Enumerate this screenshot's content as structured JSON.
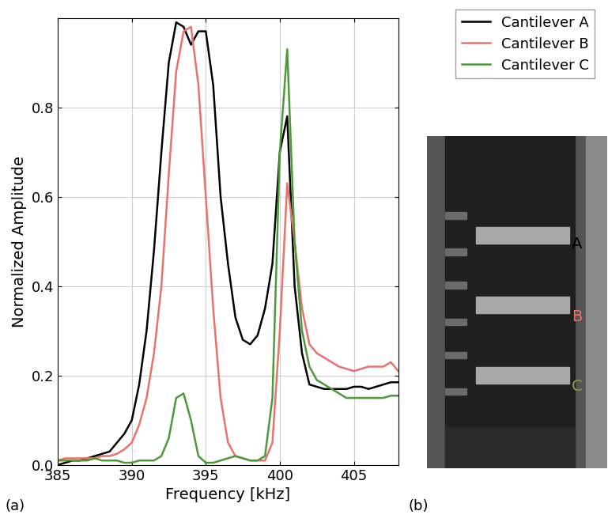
{
  "chart_data": {
    "type": "line",
    "xlabel": "Frequency [kHz]",
    "ylabel": "Normalized Amplitude",
    "x": [
      385,
      385.5,
      386,
      386.5,
      387,
      387.5,
      388,
      388.5,
      389,
      389.5,
      390,
      390.5,
      391,
      391.5,
      392,
      392.5,
      393,
      393.5,
      394,
      394.5,
      395,
      395.5,
      396,
      396.5,
      397,
      397.5,
      398,
      398.5,
      399,
      399.5,
      400,
      400.5,
      401,
      401.5,
      402,
      402.5,
      403,
      403.5,
      404,
      404.5,
      405,
      405.5,
      406,
      406.5,
      407,
      407.5,
      408
    ],
    "series": [
      {
        "name": "Cantilever A",
        "color": "#000000",
        "values": [
          0.0,
          0.005,
          0.01,
          0.01,
          0.015,
          0.02,
          0.025,
          0.03,
          0.05,
          0.07,
          0.1,
          0.18,
          0.3,
          0.48,
          0.7,
          0.9,
          0.99,
          0.98,
          0.94,
          0.97,
          0.97,
          0.85,
          0.6,
          0.45,
          0.33,
          0.28,
          0.27,
          0.29,
          0.35,
          0.45,
          0.7,
          0.78,
          0.4,
          0.25,
          0.18,
          0.175,
          0.17,
          0.17,
          0.17,
          0.17,
          0.175,
          0.175,
          0.17,
          0.175,
          0.18,
          0.185,
          0.185
        ]
      },
      {
        "name": "Cantilever B",
        "color": "#e8736c",
        "values": [
          0.01,
          0.015,
          0.015,
          0.015,
          0.015,
          0.015,
          0.02,
          0.02,
          0.025,
          0.035,
          0.05,
          0.09,
          0.15,
          0.25,
          0.4,
          0.65,
          0.88,
          0.97,
          0.98,
          0.85,
          0.6,
          0.35,
          0.15,
          0.05,
          0.02,
          0.015,
          0.01,
          0.01,
          0.01,
          0.05,
          0.3,
          0.63,
          0.5,
          0.35,
          0.27,
          0.25,
          0.24,
          0.23,
          0.22,
          0.215,
          0.21,
          0.215,
          0.22,
          0.22,
          0.22,
          0.23,
          0.21
        ]
      },
      {
        "name": "Cantilever C",
        "color": "#4c9a3a",
        "values": [
          0.01,
          0.01,
          0.01,
          0.01,
          0.01,
          0.015,
          0.01,
          0.01,
          0.01,
          0.005,
          0.005,
          0.01,
          0.01,
          0.01,
          0.02,
          0.06,
          0.15,
          0.16,
          0.1,
          0.02,
          0.005,
          0.005,
          0.01,
          0.015,
          0.02,
          0.015,
          0.01,
          0.01,
          0.02,
          0.15,
          0.7,
          0.93,
          0.5,
          0.3,
          0.22,
          0.19,
          0.18,
          0.17,
          0.16,
          0.15,
          0.15,
          0.15,
          0.15,
          0.15,
          0.15,
          0.155,
          0.155
        ]
      }
    ],
    "xlim": [
      385,
      408
    ],
    "ylim": [
      0,
      1.0
    ],
    "xticks": [
      385,
      390,
      395,
      400,
      405
    ],
    "yticks": [
      {
        "value": 0,
        "label": "0.0"
      },
      0.2,
      0.4,
      0.6,
      0.8
    ],
    "grid": true,
    "legend": "upper right"
  },
  "panel_labels": [
    "(a)",
    "(b)"
  ],
  "micrograph": {
    "labels": [
      {
        "text": "A",
        "color": "#000000"
      },
      {
        "text": "B",
        "color": "#e8736c"
      },
      {
        "text": "C",
        "color": "#8aa63a"
      }
    ]
  }
}
